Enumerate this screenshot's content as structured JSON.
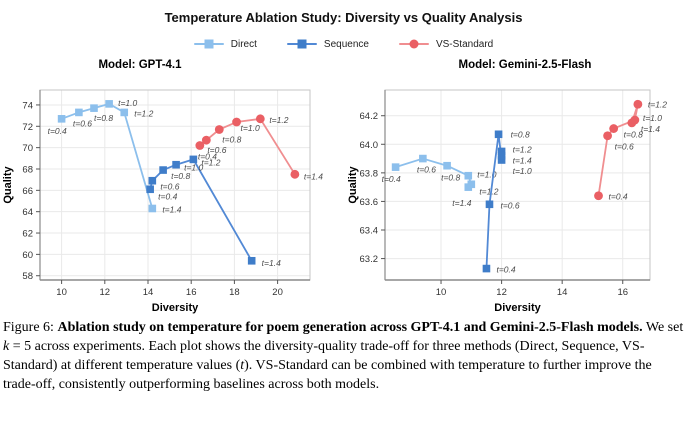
{
  "figure": {
    "title": "Temperature Ablation Study: Diversity vs Quality Analysis"
  },
  "legend": {
    "items": [
      {
        "label": "Direct",
        "line_color": "#8CBFEC",
        "marker_color": "#8CBFEC",
        "marker": "square"
      },
      {
        "label": "Sequence",
        "line_color": "#5289D5",
        "marker_color": "#3F7DC9",
        "marker": "square"
      },
      {
        "label": "VS-Standard",
        "line_color": "#F08E90",
        "marker_color": "#EA5F64",
        "marker": "circle"
      }
    ]
  },
  "chart_data": [
    {
      "type": "line",
      "title": "Model: GPT-4.1",
      "xlabel": "Diversity",
      "ylabel": "Quality",
      "xlim": [
        9.0,
        21.5
      ],
      "ylim": [
        57.6,
        75.4
      ],
      "xticks": [
        10,
        12,
        14,
        16,
        18,
        20
      ],
      "xtick_labels": [
        "10",
        "12",
        "14",
        "16",
        "18",
        "20"
      ],
      "yticks": [
        58,
        60,
        62,
        64,
        66,
        68,
        70,
        72,
        74
      ],
      "ytick_labels": [
        "58",
        "60",
        "62",
        "64",
        "66",
        "68",
        "70",
        "72",
        "74"
      ],
      "grid": true,
      "legend_position": "figure-top",
      "series": [
        {
          "name": "Direct",
          "line_color": "#8CBFEC",
          "marker_color": "#8CBFEC",
          "marker": "square",
          "points": [
            {
              "t": "t=0.4",
              "x": 10.0,
              "y": 72.7,
              "dx": -14,
              "dy": 15
            },
            {
              "t": "t=0.6",
              "x": 10.8,
              "y": 73.3,
              "dx": -6,
              "dy": 14
            },
            {
              "t": "t=0.8",
              "x": 11.5,
              "y": 73.7,
              "dx": 0,
              "dy": 13
            },
            {
              "t": "t=1.0",
              "x": 12.2,
              "y": 74.1,
              "dx": 9,
              "dy": 2
            },
            {
              "t": "t=1.2",
              "x": 12.9,
              "y": 73.3,
              "dx": 10,
              "dy": 4
            },
            {
              "t": "t=1.4",
              "x": 14.2,
              "y": 64.3,
              "dx": 10,
              "dy": 4
            }
          ]
        },
        {
          "name": "Sequence",
          "line_color": "#5289D5",
          "marker_color": "#3F7DC9",
          "marker": "square",
          "points": [
            {
              "t": "t=0.4",
              "x": 14.1,
              "y": 66.1,
              "dx": 8,
              "dy": 10
            },
            {
              "t": "t=0.6",
              "x": 14.2,
              "y": 66.9,
              "dx": 8,
              "dy": 9
            },
            {
              "t": "t=0.8",
              "x": 14.7,
              "y": 67.9,
              "dx": 8,
              "dy": 9
            },
            {
              "t": "t=1.0",
              "x": 15.3,
              "y": 68.4,
              "dx": 8,
              "dy": 6
            },
            {
              "t": "t=1.2",
              "x": 16.1,
              "y": 68.9,
              "dx": 8,
              "dy": 6
            },
            {
              "t": "t=1.4",
              "x": 18.8,
              "y": 59.4,
              "dx": 10,
              "dy": 5
            }
          ]
        },
        {
          "name": "VS-Standard",
          "line_color": "#F08E90",
          "marker_color": "#EA5F64",
          "marker": "circle",
          "points": [
            {
              "t": "t=0.4",
              "x": 16.4,
              "y": 70.2,
              "dx": -2,
              "dy": 14
            },
            {
              "t": "t=0.6",
              "x": 16.7,
              "y": 70.7,
              "dx": 1,
              "dy": 13
            },
            {
              "t": "t=0.8",
              "x": 17.3,
              "y": 71.7,
              "dx": 3,
              "dy": 13
            },
            {
              "t": "t=1.0",
              "x": 18.1,
              "y": 72.4,
              "dx": 4,
              "dy": 9
            },
            {
              "t": "t=1.2",
              "x": 19.2,
              "y": 72.7,
              "dx": 9,
              "dy": 4
            },
            {
              "t": "t=1.4",
              "x": 20.8,
              "y": 67.5,
              "dx": 9,
              "dy": 5
            }
          ]
        }
      ]
    },
    {
      "type": "line",
      "title": "Model: Gemini-2.5-Flash",
      "xlabel": "Diversity",
      "ylabel": "Quality",
      "xlim": [
        8.15,
        16.9
      ],
      "ylim": [
        63.05,
        64.38
      ],
      "xticks": [
        10,
        12,
        14,
        16
      ],
      "xtick_labels": [
        "10",
        "12",
        "14",
        "16"
      ],
      "yticks": [
        63.2,
        63.4,
        63.6,
        63.8,
        64.0,
        64.2
      ],
      "ytick_labels": [
        "63.2",
        "63.4",
        "63.6",
        "63.8",
        "64.0",
        "64.2"
      ],
      "grid": true,
      "legend_position": "figure-top",
      "series": [
        {
          "name": "Direct",
          "line_color": "#8CBFEC",
          "marker_color": "#8CBFEC",
          "marker": "square",
          "points": [
            {
              "t": "t=0.4",
              "x": 8.5,
              "y": 63.84,
              "dx": -14,
              "dy": 15
            },
            {
              "t": "t=0.6",
              "x": 9.4,
              "y": 63.9,
              "dx": -6,
              "dy": 14
            },
            {
              "t": "t=0.8",
              "x": 10.2,
              "y": 63.85,
              "dx": -6,
              "dy": 15
            },
            {
              "t": "t=1.0",
              "x": 10.9,
              "y": 63.78,
              "dx": 9,
              "dy": 2
            },
            {
              "t": "t=1.2",
              "x": 11.0,
              "y": 63.72,
              "dx": 8,
              "dy": 10
            },
            {
              "t": "t=1.4",
              "x": 10.9,
              "y": 63.7,
              "dx": -16,
              "dy": 19
            }
          ]
        },
        {
          "name": "Sequence",
          "line_color": "#5289D5",
          "marker_color": "#3F7DC9",
          "marker": "square",
          "points": [
            {
              "t": "t=0.4",
              "x": 11.5,
              "y": 63.13,
              "dx": 10,
              "dy": 4
            },
            {
              "t": "t=0.6",
              "x": 11.6,
              "y": 63.58,
              "dx": 11,
              "dy": 4
            },
            {
              "t": "t=0.8",
              "x": 11.9,
              "y": 64.07,
              "dx": 12,
              "dy": 3
            },
            {
              "t": "t=1.0",
              "x": 12.0,
              "y": 63.89,
              "dx": 11,
              "dy": 14
            },
            {
              "t": "t=1.2",
              "x": 12.0,
              "y": 63.95,
              "dx": 11,
              "dy": 1
            },
            {
              "t": "t=1.4",
              "x": 12.0,
              "y": 63.92,
              "dx": 11,
              "dy": 8
            }
          ]
        },
        {
          "name": "VS-Standard",
          "line_color": "#F08E90",
          "marker_color": "#EA5F64",
          "marker": "circle",
          "points": [
            {
              "t": "t=0.4",
              "x": 15.2,
              "y": 63.64,
              "dx": 10,
              "dy": 4
            },
            {
              "t": "t=0.6",
              "x": 15.5,
              "y": 64.06,
              "dx": 7,
              "dy": 14
            },
            {
              "t": "t=0.8",
              "x": 15.7,
              "y": 64.11,
              "dx": 10,
              "dy": 9
            },
            {
              "t": "t=1.0",
              "x": 16.4,
              "y": 64.17,
              "dx": 8,
              "dy": 1
            },
            {
              "t": "t=1.2",
              "x": 16.5,
              "y": 64.28,
              "dx": 10,
              "dy": 3
            },
            {
              "t": "t=1.4",
              "x": 16.3,
              "y": 64.15,
              "dx": 9,
              "dy": 9
            }
          ]
        }
      ]
    }
  ],
  "caption": {
    "label": "Figure 6: ",
    "bold": "Ablation study on temperature for poem generation across GPT-4.1 and Gemini-2.5-Flash models.",
    "body1": " We set ",
    "k": "k",
    "body2": " = 5 across experiments. Each plot shows the diversity-quality trade-off for three methods (Direct, Sequence, VS-Standard) at different temperature values (",
    "t": "t",
    "body3": "). VS-Standard can be combined with temperature to further improve the trade-off, consistently outperforming baselines across both models."
  }
}
